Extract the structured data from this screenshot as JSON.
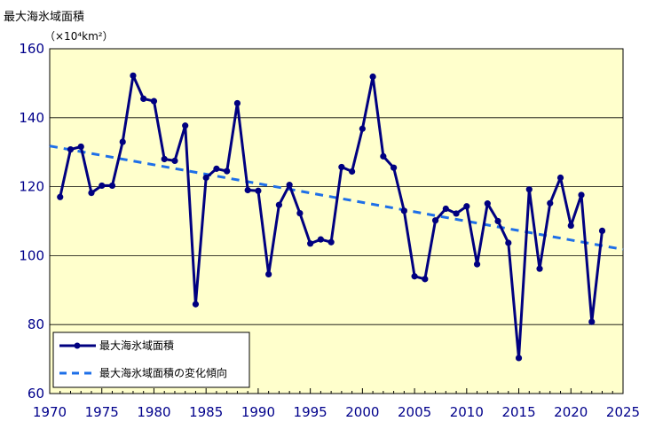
{
  "chart_data": {
    "type": "line",
    "ylabel": "最大海氷域面積",
    "yunit": "（×10⁴km²）",
    "xlim": [
      1970,
      2025
    ],
    "ylim": [
      60,
      160
    ],
    "xticks": [
      1970,
      1975,
      1980,
      1985,
      1990,
      1995,
      2000,
      2005,
      2010,
      2015,
      2020,
      2025
    ],
    "yticks": [
      60,
      80,
      100,
      120,
      140,
      160
    ],
    "grid": true,
    "legend_position": "bottom-left",
    "colors": {
      "plot_bg": "#FFFFCC",
      "series": "#000080",
      "trend": "#1E6FE8",
      "axis_text": "#00008B"
    },
    "series": [
      {
        "name": "最大海氷域面積",
        "style": "line-marker",
        "x": [
          1971,
          1972,
          1973,
          1974,
          1975,
          1976,
          1977,
          1978,
          1979,
          1980,
          1981,
          1982,
          1983,
          1984,
          1985,
          1986,
          1987,
          1988,
          1989,
          1990,
          1991,
          1992,
          1993,
          1994,
          1995,
          1996,
          1997,
          1998,
          1999,
          2000,
          2001,
          2002,
          2003,
          2004,
          2005,
          2006,
          2007,
          2008,
          2009,
          2010,
          2011,
          2012,
          2013,
          2014,
          2015,
          2016,
          2017,
          2018,
          2019,
          2020,
          2021,
          2022,
          2023
        ],
        "values": [
          117.0,
          130.8,
          131.6,
          118.2,
          120.3,
          120.3,
          133.0,
          152.2,
          145.5,
          144.8,
          128.0,
          127.5,
          137.7,
          85.9,
          122.6,
          125.2,
          124.5,
          144.2,
          119.0,
          118.8,
          94.6,
          114.7,
          120.5,
          112.3,
          103.5,
          104.7,
          103.9,
          125.7,
          124.4,
          136.8,
          151.9,
          128.8,
          125.5,
          113.0,
          94.0,
          93.2,
          110.2,
          113.6,
          112.2,
          114.3,
          97.5,
          115.1,
          110.0,
          103.7,
          70.3,
          119.2,
          96.2,
          115.2,
          122.6,
          108.7,
          117.6,
          80.8,
          107.2
        ]
      },
      {
        "name": "最大海氷域面積の変化傾向",
        "style": "dashed",
        "x": [
          1970,
          2025
        ],
        "values": [
          131.8,
          101.8
        ]
      }
    ]
  }
}
